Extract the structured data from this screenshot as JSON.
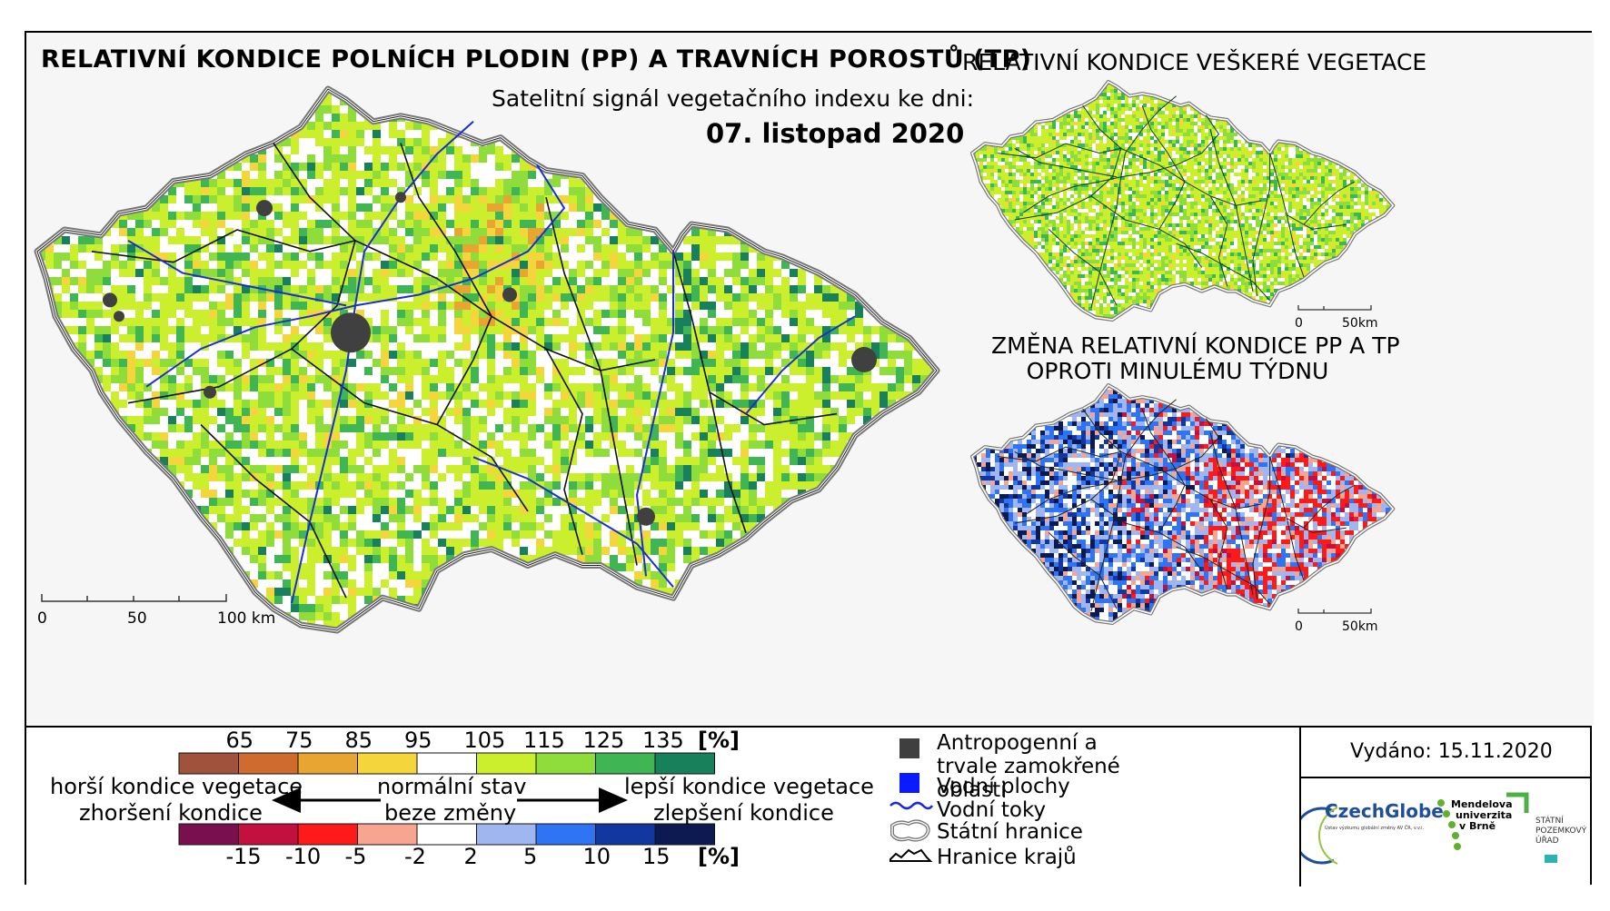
{
  "main_title": "RELATIVNÍ KONDICE POLNÍCH PLODIN (PP) A TRAVNÍCH POROSTŮ (TP)",
  "subtitle": "Satelitní signál vegetačního indexu ke dni:",
  "date": "07. listopad 2020",
  "side_map_1": {
    "title": "RELATIVNÍ KONDICE VEŠKERÉ VEGETACE",
    "scale_labels": [
      "0",
      "50km"
    ]
  },
  "side_map_2": {
    "title_line1": "ZMĚNA RELATIVNÍ KONDICE PP A TP",
    "title_line2": "OPROTI MINULÉMU TÝDNU",
    "scale_labels": [
      "0",
      "50km"
    ]
  },
  "main_scale_labels": [
    "0",
    "50",
    "100 km"
  ],
  "legend": {
    "condition_scale": {
      "unit": "[%]",
      "ticks": [
        "65",
        "75",
        "85",
        "95",
        "105",
        "115",
        "125",
        "135"
      ],
      "colors": [
        "#a0523d",
        "#cf6b2e",
        "#e8a531",
        "#f5d53c",
        "#ffffff",
        "#cbef2d",
        "#8fdd3a",
        "#3fb653",
        "#18805a"
      ]
    },
    "change_scale": {
      "unit": "[%]",
      "ticks": [
        "-15",
        "-10",
        "-5",
        "-2",
        "2",
        "5",
        "10",
        "15"
      ],
      "colors": [
        "#7a0f4f",
        "#c4103f",
        "#ff1a1a",
        "#f7a591",
        "#ffffff",
        "#9fb6f0",
        "#2e74f5",
        "#1337a1",
        "#0d1a52"
      ]
    },
    "worse_line1": "horší kondice vegetace",
    "worse_line2": "zhoršení kondice",
    "normal_line1": "normální stav",
    "normal_line2": "beze změny",
    "better_line1": "lepší kondice vegetace",
    "better_line2": "zlepšení kondice",
    "items": [
      {
        "label": "Antropogenní a trvale zamokřené oblasti",
        "symbol": "dark-square",
        "color": "#3f3f3f"
      },
      {
        "label": "Vodní plochy",
        "symbol": "blue-square",
        "color": "#0a1cff"
      },
      {
        "label": "Vodní toky",
        "symbol": "river-line",
        "color": "#1a2bd6"
      },
      {
        "label": "Státní hranice",
        "symbol": "state-border",
        "color": "#5a5a5a"
      },
      {
        "label": "Hranice krajů",
        "symbol": "region-border",
        "color": "#000000"
      }
    ],
    "issued": "Vydáno: 15.11.2020",
    "logos": {
      "czechglobe": "CzechGlobe",
      "czechglobe_sub": "Ústav výzkumu globální změny AV ČR, v.v.i.",
      "mendel_line1": "Mendelova",
      "mendel_line2": "univerzita",
      "mendel_line3": "v Brně",
      "spu_line1": "STÁTNÍ",
      "spu_line2": "POZEMKOVÝ",
      "spu_line3": "ÚŘAD"
    }
  }
}
